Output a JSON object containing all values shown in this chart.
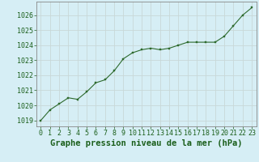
{
  "x": [
    0,
    1,
    2,
    3,
    4,
    5,
    6,
    7,
    8,
    9,
    10,
    11,
    12,
    13,
    14,
    15,
    16,
    17,
    18,
    19,
    20,
    21,
    22,
    23
  ],
  "y": [
    1019.0,
    1019.7,
    1020.1,
    1020.5,
    1020.4,
    1020.9,
    1021.5,
    1021.7,
    1022.3,
    1023.1,
    1023.5,
    1023.7,
    1023.8,
    1023.7,
    1023.8,
    1024.0,
    1024.2,
    1024.2,
    1024.2,
    1024.2,
    1024.6,
    1025.3,
    1026.0,
    1026.5
  ],
  "line_color": "#2d6a2d",
  "marker": "s",
  "marker_size": 2.0,
  "bg_color": "#d6eef5",
  "grid_color": "#c8d8d8",
  "xlabel": "Graphe pression niveau de la mer (hPa)",
  "xlabel_color": "#1a5e1a",
  "ylabel_ticks": [
    1019,
    1020,
    1021,
    1022,
    1023,
    1024,
    1025,
    1026
  ],
  "ylim": [
    1018.6,
    1026.9
  ],
  "xlim": [
    -0.5,
    23.5
  ],
  "xtick_labels": [
    "0",
    "1",
    "2",
    "3",
    "4",
    "5",
    "6",
    "7",
    "8",
    "9",
    "10",
    "11",
    "12",
    "13",
    "14",
    "15",
    "16",
    "17",
    "18",
    "19",
    "20",
    "21",
    "22",
    "23"
  ],
  "tick_fontsize": 6.0,
  "label_fontsize": 7.5,
  "spine_color": "#888888"
}
